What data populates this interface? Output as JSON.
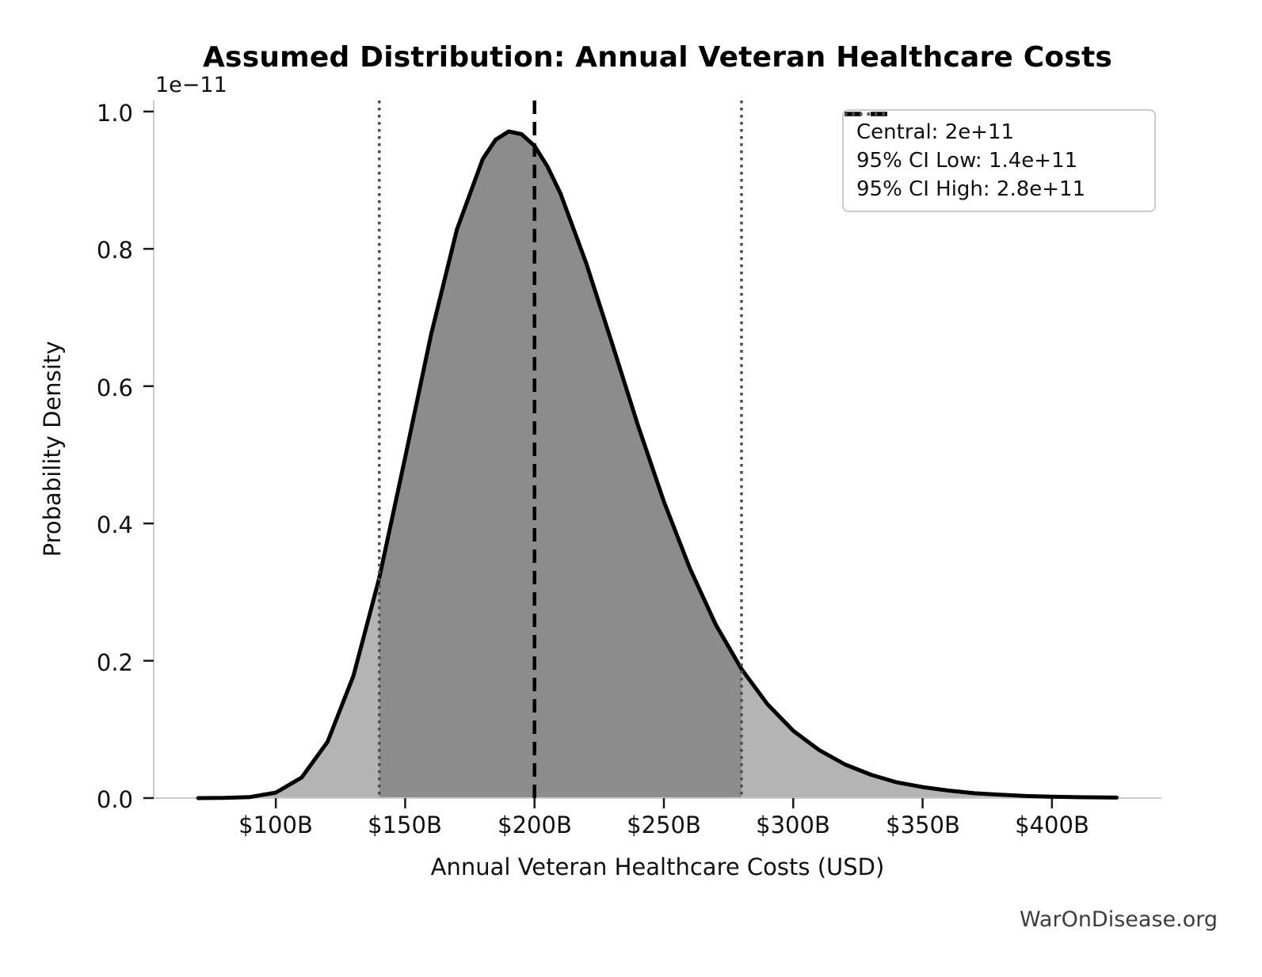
{
  "page": {
    "watermark": "WarOnDisease.org",
    "background_color": "#ffffff"
  },
  "chart_data": {
    "type": "area",
    "title": "Assumed Distribution: Annual Veteran Healthcare Costs",
    "xlabel": "Annual Veteran Healthcare Costs (USD)",
    "ylabel": "Probability Density",
    "y_offset_label": "1e−11",
    "grid": false,
    "legend_position": "upper right",
    "x_tick_labels": [
      "$100B",
      "$150B",
      "$200B",
      "$250B",
      "$300B",
      "$350B",
      "$400B"
    ],
    "x_tick_values_billions": [
      100,
      150,
      200,
      250,
      300,
      350,
      400
    ],
    "y_tick_labels": [
      "0.0",
      "0.2",
      "0.4",
      "0.6",
      "0.8",
      "1.0"
    ],
    "y_tick_values": [
      0,
      0.2,
      0.4,
      0.6,
      0.8,
      1.0
    ],
    "xlim_billions": [
      52.8,
      442.3
    ],
    "ylim": [
      0,
      1.016
    ],
    "central_value_billions": 200,
    "ci_low_billions": 140,
    "ci_high_billions": 280,
    "curve_points": [
      [
        70,
        0.0
      ],
      [
        80,
        0.0002
      ],
      [
        90,
        0.0015
      ],
      [
        100,
        0.008
      ],
      [
        110,
        0.03
      ],
      [
        120,
        0.082
      ],
      [
        130,
        0.178
      ],
      [
        140,
        0.321
      ],
      [
        150,
        0.496
      ],
      [
        160,
        0.675
      ],
      [
        170,
        0.828
      ],
      [
        180,
        0.931
      ],
      [
        185,
        0.959
      ],
      [
        190,
        0.971
      ],
      [
        195,
        0.967
      ],
      [
        200,
        0.95
      ],
      [
        205,
        0.92
      ],
      [
        210,
        0.881
      ],
      [
        220,
        0.779
      ],
      [
        230,
        0.662
      ],
      [
        240,
        0.543
      ],
      [
        250,
        0.432
      ],
      [
        260,
        0.335
      ],
      [
        270,
        0.253
      ],
      [
        280,
        0.188
      ],
      [
        290,
        0.137
      ],
      [
        300,
        0.098
      ],
      [
        310,
        0.07
      ],
      [
        320,
        0.049
      ],
      [
        330,
        0.034
      ],
      [
        340,
        0.023
      ],
      [
        350,
        0.016
      ],
      [
        360,
        0.011
      ],
      [
        370,
        0.007
      ],
      [
        380,
        0.005
      ],
      [
        390,
        0.003
      ],
      [
        400,
        0.002
      ],
      [
        410,
        0.0013
      ],
      [
        425,
        0.0007
      ]
    ],
    "legend": [
      {
        "label": "Central: 2e+11",
        "style": "dashed",
        "color": "#000000"
      },
      {
        "label": "95% CI Low: 1.4e+11",
        "style": "dotted",
        "color": "#4d4d4d"
      },
      {
        "label": "95% CI High: 2.8e+11",
        "style": "dotted",
        "color": "#4d4d4d"
      }
    ],
    "colors": {
      "curve": "#000000",
      "fill_light": "#b4b4b4",
      "fill_dark": "#8c8c8c",
      "central_line": "#000000",
      "ci_line": "#4d4d4d",
      "spine": "#cbcbcb",
      "tick": "#1a1a1a"
    }
  }
}
